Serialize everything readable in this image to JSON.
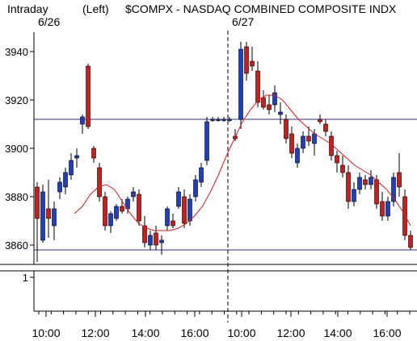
{
  "header": {
    "left_label": "Intraday",
    "mode": "(Left)",
    "title": "$COMPX - NASDAQ COMBINED COMPOSITE INDX",
    "dates": [
      "6/26",
      "6/27"
    ]
  },
  "colors": {
    "up_bar": "#1f3fbf",
    "down_bar": "#c81e1e",
    "moving_average": "#e01a1a",
    "level_line": "#2c2ca0",
    "axis": "#000000"
  },
  "chart_data": {
    "type": "candlestick",
    "title": "$COMPX - NASDAQ COMBINED COMPOSITE INDX",
    "yticks": [
      3860,
      3880,
      3900,
      3920,
      3940
    ],
    "ylim": [
      3852,
      3948
    ],
    "xticks": [
      "10:00",
      "12:00",
      "14:00",
      "16:00",
      "10:00",
      "12:00",
      "14:00",
      "16:00"
    ],
    "session_dates": [
      "6/26",
      "6/27"
    ],
    "levels": [
      3912,
      3858
    ],
    "lower_panel": {
      "ytick": 1
    },
    "moving_average": [
      3873,
      3876,
      3881,
      3884,
      3885,
      3883,
      3878,
      3873,
      3869,
      3867,
      3866,
      3866,
      3866,
      3867,
      3869,
      3872,
      3876,
      3882,
      3889,
      3897,
      3904,
      3911,
      3916,
      3920,
      3922,
      3922,
      3920,
      3916,
      3912,
      3909,
      3906,
      3904,
      3902,
      3899,
      3896,
      3893,
      3891,
      3889,
      3886,
      3883,
      3879,
      3874,
      3868
    ],
    "candles": [
      {
        "o": 3884,
        "h": 3886,
        "l": 3853,
        "c": 3871
      },
      {
        "o": 3862,
        "h": 3885,
        "l": 3861,
        "c": 3882
      },
      {
        "o": 3875,
        "h": 3887,
        "l": 3863,
        "c": 3871
      },
      {
        "o": 3868,
        "h": 3878,
        "l": 3862,
        "c": 3875
      },
      {
        "o": 3882,
        "h": 3888,
        "l": 3879,
        "c": 3886
      },
      {
        "o": 3884,
        "h": 3892,
        "l": 3881,
        "c": 3890
      },
      {
        "o": 3889,
        "h": 3898,
        "l": 3887,
        "c": 3895
      },
      {
        "o": 3896,
        "h": 3900,
        "l": 3892,
        "c": 3897
      },
      {
        "o": 3910,
        "h": 3914,
        "l": 3906,
        "c": 3913
      },
      {
        "o": 3934,
        "h": 3935,
        "l": 3908,
        "c": 3909
      },
      {
        "o": 3900,
        "h": 3901,
        "l": 3894,
        "c": 3896
      },
      {
        "o": 3892,
        "h": 3894,
        "l": 3878,
        "c": 3880
      },
      {
        "o": 3880,
        "h": 3882,
        "l": 3866,
        "c": 3868
      },
      {
        "o": 3868,
        "h": 3874,
        "l": 3865,
        "c": 3873
      },
      {
        "o": 3871,
        "h": 3877,
        "l": 3870,
        "c": 3876
      },
      {
        "o": 3876,
        "h": 3879,
        "l": 3873,
        "c": 3874
      },
      {
        "o": 3875,
        "h": 3880,
        "l": 3873,
        "c": 3879
      },
      {
        "o": 3880,
        "h": 3884,
        "l": 3878,
        "c": 3882
      },
      {
        "o": 3881,
        "h": 3883,
        "l": 3868,
        "c": 3870
      },
      {
        "o": 3868,
        "h": 3872,
        "l": 3859,
        "c": 3861
      },
      {
        "o": 3860,
        "h": 3866,
        "l": 3858,
        "c": 3864
      },
      {
        "o": 3865,
        "h": 3868,
        "l": 3858,
        "c": 3860
      },
      {
        "o": 3861,
        "h": 3864,
        "l": 3856,
        "c": 3862
      },
      {
        "o": 3868,
        "h": 3876,
        "l": 3866,
        "c": 3875
      },
      {
        "o": 3870,
        "h": 3873,
        "l": 3867,
        "c": 3868
      },
      {
        "o": 3876,
        "h": 3884,
        "l": 3875,
        "c": 3882
      },
      {
        "o": 3880,
        "h": 3883,
        "l": 3867,
        "c": 3869
      },
      {
        "o": 3870,
        "h": 3881,
        "l": 3868,
        "c": 3879
      },
      {
        "o": 3880,
        "h": 3889,
        "l": 3878,
        "c": 3887
      },
      {
        "o": 3886,
        "h": 3894,
        "l": 3884,
        "c": 3892
      },
      {
        "o": 3895,
        "h": 3913,
        "l": 3893,
        "c": 3911
      },
      {
        "o": 3912,
        "h": 3913,
        "l": 3911,
        "c": 3912
      },
      {
        "o": 3912,
        "h": 3913,
        "l": 3911,
        "c": 3912
      },
      {
        "o": 3912,
        "h": 3913,
        "l": 3911,
        "c": 3912
      },
      {
        "o": 3912,
        "h": 3913,
        "l": 3911,
        "c": 3912
      },
      {
        "o": 3905,
        "h": 3908,
        "l": 3903,
        "c": 3904
      },
      {
        "o": 3912,
        "h": 3944,
        "l": 3908,
        "c": 3941
      },
      {
        "o": 3942,
        "h": 3944,
        "l": 3928,
        "c": 3931
      },
      {
        "o": 3936,
        "h": 3942,
        "l": 3932,
        "c": 3934
      },
      {
        "o": 3932,
        "h": 3936,
        "l": 3917,
        "c": 3919
      },
      {
        "o": 3921,
        "h": 3924,
        "l": 3916,
        "c": 3917
      },
      {
        "o": 3918,
        "h": 3922,
        "l": 3914,
        "c": 3916
      },
      {
        "o": 3918,
        "h": 3926,
        "l": 3915,
        "c": 3923
      },
      {
        "o": 3914,
        "h": 3919,
        "l": 3910,
        "c": 3915
      },
      {
        "o": 3912,
        "h": 3914,
        "l": 3902,
        "c": 3904
      },
      {
        "o": 3906,
        "h": 3909,
        "l": 3896,
        "c": 3898
      },
      {
        "o": 3894,
        "h": 3902,
        "l": 3892,
        "c": 3900
      },
      {
        "o": 3900,
        "h": 3907,
        "l": 3898,
        "c": 3905
      },
      {
        "o": 3905,
        "h": 3909,
        "l": 3901,
        "c": 3903
      },
      {
        "o": 3902,
        "h": 3908,
        "l": 3897,
        "c": 3906
      },
      {
        "o": 3912,
        "h": 3914,
        "l": 3910,
        "c": 3911
      },
      {
        "o": 3910,
        "h": 3912,
        "l": 3905,
        "c": 3907
      },
      {
        "o": 3905,
        "h": 3907,
        "l": 3895,
        "c": 3897
      },
      {
        "o": 3897,
        "h": 3899,
        "l": 3890,
        "c": 3894
      },
      {
        "o": 3893,
        "h": 3897,
        "l": 3888,
        "c": 3890
      },
      {
        "o": 3890,
        "h": 3893,
        "l": 3875,
        "c": 3878
      },
      {
        "o": 3878,
        "h": 3886,
        "l": 3876,
        "c": 3883
      },
      {
        "o": 3883,
        "h": 3890,
        "l": 3881,
        "c": 3888
      },
      {
        "o": 3887,
        "h": 3889,
        "l": 3883,
        "c": 3885
      },
      {
        "o": 3885,
        "h": 3891,
        "l": 3883,
        "c": 3888
      },
      {
        "o": 3887,
        "h": 3889,
        "l": 3875,
        "c": 3877
      },
      {
        "o": 3878,
        "h": 3882,
        "l": 3870,
        "c": 3872
      },
      {
        "o": 3872,
        "h": 3880,
        "l": 3870,
        "c": 3878
      },
      {
        "o": 3878,
        "h": 3890,
        "l": 3876,
        "c": 3888
      },
      {
        "o": 3890,
        "h": 3898,
        "l": 3880,
        "c": 3884
      },
      {
        "o": 3880,
        "h": 3883,
        "l": 3862,
        "c": 3864
      },
      {
        "o": 3864,
        "h": 3866,
        "l": 3858,
        "c": 3859
      }
    ]
  }
}
